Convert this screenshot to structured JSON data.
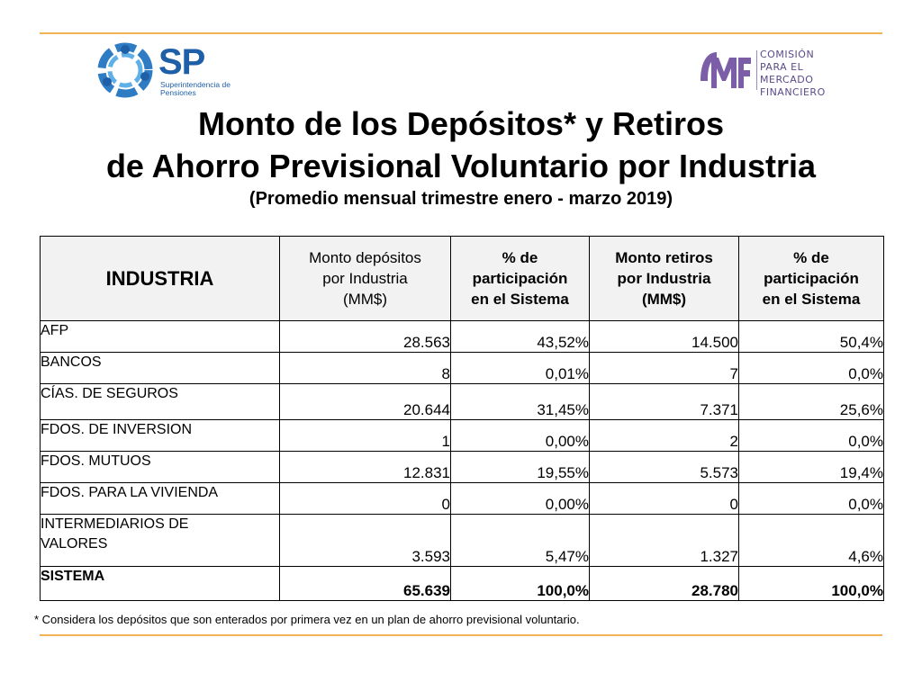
{
  "logos": {
    "sp": {
      "letters": "SP",
      "subtitle_line1": "Superintendencia de",
      "subtitle_line2": "Pensiones"
    },
    "cmf": {
      "letters": "CMF",
      "line1": "COMISIÓN",
      "line2": "PARA EL MERCADO",
      "line3": "FINANCIERO"
    }
  },
  "title": {
    "line1": "Monto de los Depósitos* y Retiros",
    "line2": "de Ahorro Previsional Voluntario por Industria",
    "subtitle": "(Promedio mensual trimestre enero - marzo 2019)"
  },
  "table": {
    "headers": [
      {
        "lines": [
          "INDUSTRIA"
        ]
      },
      {
        "lines": [
          "Monto depósitos",
          "por Industria",
          "(MM$)"
        ]
      },
      {
        "lines": [
          "% de",
          "participación",
          "en el Sistema"
        ]
      },
      {
        "lines": [
          "Monto retiros",
          "por Industria",
          "(MM$)"
        ]
      },
      {
        "lines": [
          "% de",
          "participación",
          "en el Sistema"
        ]
      }
    ],
    "rows": [
      {
        "name": "AFP",
        "dep": "28.563",
        "dep_pct": "43,52%",
        "ret": "14.500",
        "ret_pct": "50,4%"
      },
      {
        "name": "BANCOS",
        "dep": "8",
        "dep_pct": "0,01%",
        "ret": "7",
        "ret_pct": "0,0%"
      },
      {
        "name": "CÍAS. DE SEGUROS",
        "dep": "20.644",
        "dep_pct": "31,45%",
        "ret": "7.371",
        "ret_pct": "25,6%"
      },
      {
        "name": "FDOS. DE INVERSION",
        "dep": "1",
        "dep_pct": "0,00%",
        "ret": "2",
        "ret_pct": "0,0%"
      },
      {
        "name": "FDOS. MUTUOS",
        "dep": "12.831",
        "dep_pct": "19,55%",
        "ret": "5.573",
        "ret_pct": "19,4%"
      },
      {
        "name": "FDOS. PARA LA VIVIENDA",
        "dep": "0",
        "dep_pct": "0,00%",
        "ret": "0",
        "ret_pct": "0,0%"
      },
      {
        "name_line1": "INTERMEDIARIOS DE",
        "name_line2": "VALORES",
        "dep": "3.593",
        "dep_pct": "5,47%",
        "ret": "1.327",
        "ret_pct": "4,6%"
      }
    ],
    "total": {
      "name": "SISTEMA",
      "dep": "65.639",
      "dep_pct": "100,0%",
      "ret": "28.780",
      "ret_pct": "100,0%"
    }
  },
  "footnote": "* Considera los depósitos que son enterados por primera vez en un plan de ahorro previsional voluntario.",
  "colors": {
    "accent_rule": "#f0b356",
    "sp_blue": "#1f5fa8",
    "cmf_purple": "#5a4a8a",
    "header_bg": "#f2f2f2"
  }
}
